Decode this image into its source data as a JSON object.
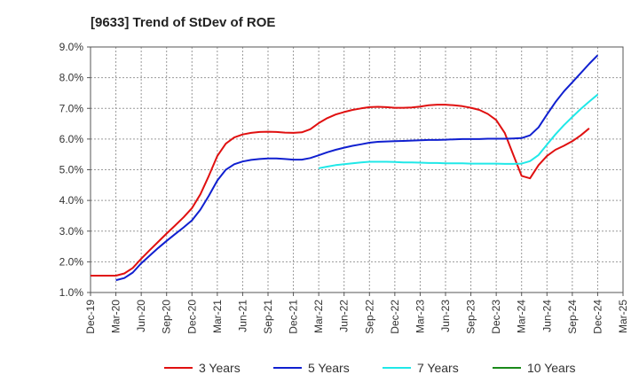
{
  "chart_data": {
    "type": "line",
    "title": "[9633]  Trend of StDev of ROE",
    "x": [
      "Dec-19",
      "Mar-20",
      "Jun-20",
      "Sep-20",
      "Dec-20",
      "Mar-21",
      "Jun-21",
      "Sep-21",
      "Dec-21",
      "Mar-22",
      "Jun-22",
      "Sep-22",
      "Dec-22",
      "Mar-23",
      "Jun-23",
      "Sep-23",
      "Dec-23",
      "Mar-24",
      "Jun-24",
      "Sep-24",
      "Dec-24",
      "Mar-25"
    ],
    "yticks": [
      "1.0%",
      "2.0%",
      "3.0%",
      "4.0%",
      "5.0%",
      "6.0%",
      "7.0%",
      "8.0%",
      "9.0%"
    ],
    "ylim": [
      1.0,
      9.0
    ],
    "grid": true,
    "legend_position": "bottom",
    "series": [
      {
        "name": "3 Years",
        "color": "#e01010",
        "points": [
          [
            "Dec-19",
            1.55
          ],
          [
            "Jan-20",
            1.55
          ],
          [
            "Feb-20",
            1.55
          ],
          [
            "Mar-20",
            1.55
          ],
          [
            "Apr-20",
            1.62
          ],
          [
            "May-20",
            1.8
          ],
          [
            "Jun-20",
            2.1
          ],
          [
            "Jul-20",
            2.38
          ],
          [
            "Aug-20",
            2.65
          ],
          [
            "Sep-20",
            2.92
          ],
          [
            "Oct-20",
            3.18
          ],
          [
            "Nov-20",
            3.45
          ],
          [
            "Dec-20",
            3.75
          ],
          [
            "Jan-21",
            4.2
          ],
          [
            "Feb-21",
            4.8
          ],
          [
            "Mar-21",
            5.45
          ],
          [
            "Apr-21",
            5.85
          ],
          [
            "May-21",
            6.05
          ],
          [
            "Jun-21",
            6.15
          ],
          [
            "Jul-21",
            6.2
          ],
          [
            "Aug-21",
            6.23
          ],
          [
            "Sep-21",
            6.24
          ],
          [
            "Oct-21",
            6.23
          ],
          [
            "Nov-21",
            6.21
          ],
          [
            "Dec-21",
            6.2
          ],
          [
            "Jan-22",
            6.22
          ],
          [
            "Feb-22",
            6.32
          ],
          [
            "Mar-22",
            6.52
          ],
          [
            "Apr-22",
            6.68
          ],
          [
            "May-22",
            6.8
          ],
          [
            "Jun-22",
            6.88
          ],
          [
            "Jul-22",
            6.95
          ],
          [
            "Aug-22",
            7.0
          ],
          [
            "Sep-22",
            7.04
          ],
          [
            "Oct-22",
            7.05
          ],
          [
            "Nov-22",
            7.04
          ],
          [
            "Dec-22",
            7.02
          ],
          [
            "Jan-23",
            7.02
          ],
          [
            "Feb-23",
            7.03
          ],
          [
            "Mar-23",
            7.06
          ],
          [
            "Apr-23",
            7.1
          ],
          [
            "May-23",
            7.12
          ],
          [
            "Jun-23",
            7.12
          ],
          [
            "Jul-23",
            7.1
          ],
          [
            "Aug-23",
            7.07
          ],
          [
            "Sep-23",
            7.02
          ],
          [
            "Oct-23",
            6.95
          ],
          [
            "Nov-23",
            6.82
          ],
          [
            "Dec-23",
            6.62
          ],
          [
            "Jan-24",
            6.2
          ],
          [
            "Feb-24",
            5.5
          ],
          [
            "Mar-24",
            4.8
          ],
          [
            "Apr-24",
            4.72
          ],
          [
            "May-24",
            5.15
          ],
          [
            "Jun-24",
            5.45
          ],
          [
            "Jul-24",
            5.65
          ],
          [
            "Aug-24",
            5.78
          ],
          [
            "Sep-24",
            5.93
          ],
          [
            "Oct-24",
            6.12
          ],
          [
            "Nov-24",
            6.35
          ]
        ]
      },
      {
        "name": "5 Years",
        "color": "#1020d0",
        "points": [
          [
            "Mar-20",
            1.4
          ],
          [
            "Apr-20",
            1.47
          ],
          [
            "May-20",
            1.65
          ],
          [
            "Jun-20",
            1.95
          ],
          [
            "Jul-20",
            2.2
          ],
          [
            "Aug-20",
            2.45
          ],
          [
            "Sep-20",
            2.68
          ],
          [
            "Oct-20",
            2.9
          ],
          [
            "Nov-20",
            3.12
          ],
          [
            "Dec-20",
            3.35
          ],
          [
            "Jan-21",
            3.7
          ],
          [
            "Feb-21",
            4.15
          ],
          [
            "Mar-21",
            4.65
          ],
          [
            "Apr-21",
            5.0
          ],
          [
            "May-21",
            5.18
          ],
          [
            "Jun-21",
            5.27
          ],
          [
            "Jul-21",
            5.32
          ],
          [
            "Aug-21",
            5.35
          ],
          [
            "Sep-21",
            5.37
          ],
          [
            "Oct-21",
            5.37
          ],
          [
            "Nov-21",
            5.35
          ],
          [
            "Dec-21",
            5.33
          ],
          [
            "Jan-22",
            5.33
          ],
          [
            "Feb-22",
            5.38
          ],
          [
            "Mar-22",
            5.47
          ],
          [
            "Apr-22",
            5.57
          ],
          [
            "May-22",
            5.65
          ],
          [
            "Jun-22",
            5.72
          ],
          [
            "Jul-22",
            5.78
          ],
          [
            "Aug-22",
            5.83
          ],
          [
            "Sep-22",
            5.88
          ],
          [
            "Oct-22",
            5.91
          ],
          [
            "Nov-22",
            5.92
          ],
          [
            "Dec-22",
            5.93
          ],
          [
            "Jan-23",
            5.94
          ],
          [
            "Feb-23",
            5.95
          ],
          [
            "Mar-23",
            5.96
          ],
          [
            "Apr-23",
            5.97
          ],
          [
            "May-23",
            5.97
          ],
          [
            "Jun-23",
            5.98
          ],
          [
            "Jul-23",
            5.99
          ],
          [
            "Aug-23",
            6.0
          ],
          [
            "Sep-23",
            6.0
          ],
          [
            "Oct-23",
            6.0
          ],
          [
            "Nov-23",
            6.01
          ],
          [
            "Dec-23",
            6.01
          ],
          [
            "Jan-24",
            6.01
          ],
          [
            "Feb-24",
            6.02
          ],
          [
            "Mar-24",
            6.03
          ],
          [
            "Apr-24",
            6.12
          ],
          [
            "May-24",
            6.38
          ],
          [
            "Jun-24",
            6.8
          ],
          [
            "Jul-24",
            7.2
          ],
          [
            "Aug-24",
            7.55
          ],
          [
            "Sep-24",
            7.85
          ],
          [
            "Oct-24",
            8.15
          ],
          [
            "Nov-24",
            8.45
          ],
          [
            "Dec-24",
            8.73
          ]
        ]
      },
      {
        "name": "7 Years",
        "color": "#20e8e8",
        "points": [
          [
            "Mar-22",
            5.05
          ],
          [
            "Apr-22",
            5.1
          ],
          [
            "May-22",
            5.15
          ],
          [
            "Jun-22",
            5.18
          ],
          [
            "Jul-22",
            5.21
          ],
          [
            "Aug-22",
            5.24
          ],
          [
            "Sep-22",
            5.26
          ],
          [
            "Oct-22",
            5.26
          ],
          [
            "Nov-22",
            5.26
          ],
          [
            "Dec-22",
            5.25
          ],
          [
            "Jan-23",
            5.24
          ],
          [
            "Feb-23",
            5.24
          ],
          [
            "Mar-23",
            5.23
          ],
          [
            "Apr-23",
            5.22
          ],
          [
            "May-23",
            5.22
          ],
          [
            "Jun-23",
            5.21
          ],
          [
            "Jul-23",
            5.21
          ],
          [
            "Aug-23",
            5.21
          ],
          [
            "Sep-23",
            5.2
          ],
          [
            "Oct-23",
            5.2
          ],
          [
            "Nov-23",
            5.2
          ],
          [
            "Dec-23",
            5.2
          ],
          [
            "Jan-24",
            5.19
          ],
          [
            "Feb-24",
            5.19
          ],
          [
            "Mar-24",
            5.2
          ],
          [
            "Apr-24",
            5.28
          ],
          [
            "May-24",
            5.48
          ],
          [
            "Jun-24",
            5.82
          ],
          [
            "Jul-24",
            6.15
          ],
          [
            "Aug-24",
            6.45
          ],
          [
            "Sep-24",
            6.72
          ],
          [
            "Oct-24",
            6.98
          ],
          [
            "Nov-24",
            7.22
          ],
          [
            "Dec-24",
            7.45
          ]
        ]
      },
      {
        "name": "10 Years",
        "color": "#1a8a1a",
        "points": []
      }
    ]
  }
}
